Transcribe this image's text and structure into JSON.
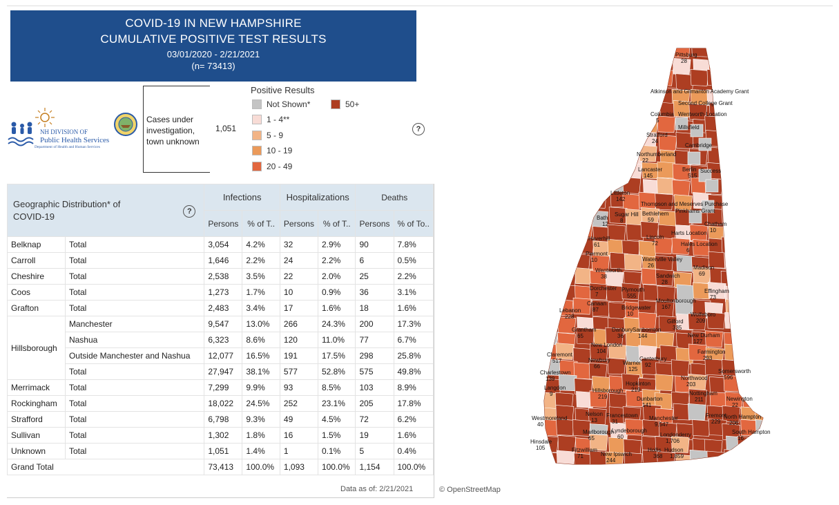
{
  "header": {
    "title_line1": "COVID-19 IN NEW HAMPSHIRE",
    "title_line2": "CUMULATIVE POSITIVE TEST RESULTS",
    "date_range": "03/01/2020 - 2/21/2021",
    "n_total": "(n= 73413)"
  },
  "logo": {
    "line1": "NH DIVISION OF",
    "line2": "Public Health Services",
    "line3": "Department of Health and Human Services"
  },
  "unknown_town": {
    "label": "Cases under investigation, town unknown",
    "value": "1,051"
  },
  "legend": {
    "title": "Positive Results",
    "items": [
      {
        "label": "Not Shown*",
        "color": "#c4c4c4"
      },
      {
        "label": "1 - 4**",
        "color": "#f8dcd6"
      },
      {
        "label": "5 - 9",
        "color": "#f2b486"
      },
      {
        "label": "10 - 19",
        "color": "#eb9a5a"
      },
      {
        "label": "20 - 49",
        "color": "#e2673f"
      },
      {
        "label": "50+",
        "color": "#ad3e22"
      }
    ]
  },
  "table": {
    "title": "Geographic Distribution* of COVID-19",
    "groups": [
      "Infections",
      "Hospitalizations",
      "Deaths"
    ],
    "subheaders": [
      "Persons",
      "% of T..",
      "Persons",
      "% of T..",
      "Persons",
      "% of To.."
    ],
    "rows": [
      {
        "county": "Belknap",
        "sub": "Total",
        "v": [
          "3,054",
          "4.2%",
          "32",
          "2.9%",
          "90",
          "7.8%"
        ]
      },
      {
        "county": "Carroll",
        "sub": "Total",
        "v": [
          "1,646",
          "2.2%",
          "24",
          "2.2%",
          "6",
          "0.5%"
        ]
      },
      {
        "county": "Cheshire",
        "sub": "Total",
        "v": [
          "2,538",
          "3.5%",
          "22",
          "2.0%",
          "25",
          "2.2%"
        ]
      },
      {
        "county": "Coos",
        "sub": "Total",
        "v": [
          "1,273",
          "1.7%",
          "10",
          "0.9%",
          "36",
          "3.1%"
        ]
      },
      {
        "county": "Grafton",
        "sub": "Total",
        "v": [
          "2,483",
          "3.4%",
          "17",
          "1.6%",
          "18",
          "1.6%"
        ]
      },
      {
        "county": "Hillsborough",
        "sub": "Manchester",
        "v": [
          "9,547",
          "13.0%",
          "266",
          "24.3%",
          "200",
          "17.3%"
        ]
      },
      {
        "county": "",
        "sub": "Nashua",
        "v": [
          "6,323",
          "8.6%",
          "120",
          "11.0%",
          "77",
          "6.7%"
        ]
      },
      {
        "county": "",
        "sub": "Outside Manchester and Nashua",
        "v": [
          "12,077",
          "16.5%",
          "191",
          "17.5%",
          "298",
          "25.8%"
        ]
      },
      {
        "county": "",
        "sub": "Total",
        "v": [
          "27,947",
          "38.1%",
          "577",
          "52.8%",
          "575",
          "49.8%"
        ]
      },
      {
        "county": "Merrimack",
        "sub": "Total",
        "v": [
          "7,299",
          "9.9%",
          "93",
          "8.5%",
          "103",
          "8.9%"
        ]
      },
      {
        "county": "Rockingham",
        "sub": "Total",
        "v": [
          "18,022",
          "24.5%",
          "252",
          "23.1%",
          "205",
          "17.8%"
        ]
      },
      {
        "county": "Strafford",
        "sub": "Total",
        "v": [
          "6,798",
          "9.3%",
          "49",
          "4.5%",
          "72",
          "6.2%"
        ]
      },
      {
        "county": "Sullivan",
        "sub": "Total",
        "v": [
          "1,302",
          "1.8%",
          "16",
          "1.5%",
          "19",
          "1.6%"
        ]
      },
      {
        "county": "Unknown",
        "sub": "Total",
        "v": [
          "1,051",
          "1.4%",
          "1",
          "0.1%",
          "5",
          "0.4%"
        ]
      }
    ],
    "grand_total": {
      "label": "Grand Total",
      "v": [
        "73,413",
        "100.0%",
        "1,093",
        "100.0%",
        "1,154",
        "100.0%"
      ]
    }
  },
  "footer": {
    "data_as_of": "Data as of:  2/21/2021",
    "attribution": "© OpenStreetMap"
  },
  "map_labels": [
    {
      "name": "Pittsburg",
      "value": "28"
    },
    {
      "name": "Atkinson and Gilmanton Academy Grant",
      "value": ""
    },
    {
      "name": "Second College Grant",
      "value": ""
    },
    {
      "name": "Columbia",
      "value": "5"
    },
    {
      "name": "Wentworth Location",
      "value": ""
    },
    {
      "name": "Millsfield",
      "value": ""
    },
    {
      "name": "Stratford",
      "value": "24"
    },
    {
      "name": "Cambridge",
      "value": ""
    },
    {
      "name": "Northumberland",
      "value": "22"
    },
    {
      "name": "Lancaster",
      "value": "145"
    },
    {
      "name": "Berlin",
      "value": "515"
    },
    {
      "name": "Success",
      "value": ""
    },
    {
      "name": "Littleton",
      "value": "142"
    },
    {
      "name": "Thompson and Meserves Purchase",
      "value": ""
    },
    {
      "name": "Bethlehem",
      "value": "59"
    },
    {
      "name": "Pinkhams Grant",
      "value": ""
    },
    {
      "name": "Bath",
      "value": "12"
    },
    {
      "name": "Sugar Hill",
      "value": "8"
    },
    {
      "name": "Chatham",
      "value": "10"
    },
    {
      "name": "Harts Location",
      "value": ""
    },
    {
      "name": "Lincoln",
      "value": "72"
    },
    {
      "name": "Hales Location",
      "value": "6"
    },
    {
      "name": "Haverhill",
      "value": "61"
    },
    {
      "name": "Piermont",
      "value": "10"
    },
    {
      "name": "Waterville Valley",
      "value": "26"
    },
    {
      "name": "Madison",
      "value": "69"
    },
    {
      "name": "Wentworth",
      "value": "38"
    },
    {
      "name": "Sandwich",
      "value": "28"
    },
    {
      "name": "Dorchester",
      "value": "7"
    },
    {
      "name": "Plymouth",
      "value": "555"
    },
    {
      "name": "Effingham",
      "value": "73"
    },
    {
      "name": "Canaan",
      "value": "87"
    },
    {
      "name": "Bridgewater",
      "value": "10"
    },
    {
      "name": "Moultonborough",
      "value": "167"
    },
    {
      "name": "Lebanon",
      "value": "228"
    },
    {
      "name": "Wolfeboro",
      "value": "209"
    },
    {
      "name": "Gilford",
      "value": "335"
    },
    {
      "name": "Grantham",
      "value": "65"
    },
    {
      "name": "Danbury",
      "value": "36"
    },
    {
      "name": "Sanbornton",
      "value": "144"
    },
    {
      "name": "New Durham",
      "value": "127"
    },
    {
      "name": "New London",
      "value": "104"
    },
    {
      "name": "Claremont",
      "value": "517"
    },
    {
      "name": "Farmington",
      "value": "293"
    },
    {
      "name": "Newbury",
      "value": "66"
    },
    {
      "name": "Warner",
      "value": "125"
    },
    {
      "name": "Canterbury",
      "value": "92"
    },
    {
      "name": "Charlestown",
      "value": "139"
    },
    {
      "name": "Somersworth",
      "value": "596"
    },
    {
      "name": "Northwood",
      "value": "203"
    },
    {
      "name": "Hopkinton",
      "value": "219"
    },
    {
      "name": "Langdon",
      "value": "9"
    },
    {
      "name": "Hillsborough",
      "value": "219"
    },
    {
      "name": "Nottingham",
      "value": "211"
    },
    {
      "name": "Dunbarton",
      "value": "141"
    },
    {
      "name": "Newington",
      "value": "22"
    },
    {
      "name": "Nelson",
      "value": "13"
    },
    {
      "name": "Francestown",
      "value": "31"
    },
    {
      "name": "Westmoreland",
      "value": "40"
    },
    {
      "name": "Manchester",
      "value": "9,547"
    },
    {
      "name": "Fremont",
      "value": "229"
    },
    {
      "name": "North Hampton",
      "value": "206"
    },
    {
      "name": "Marlborough",
      "value": "65"
    },
    {
      "name": "Lyndeborough",
      "value": "60"
    },
    {
      "name": "Londonderry",
      "value": "1,706"
    },
    {
      "name": "South Hampton",
      "value": "16"
    },
    {
      "name": "Hinsdale",
      "value": "105"
    },
    {
      "name": "Fitzwilliam",
      "value": "71"
    },
    {
      "name": "New Ipswich",
      "value": "244"
    },
    {
      "name": "Hollis",
      "value": "368"
    },
    {
      "name": "Hudson",
      "value": "1,859"
    }
  ]
}
